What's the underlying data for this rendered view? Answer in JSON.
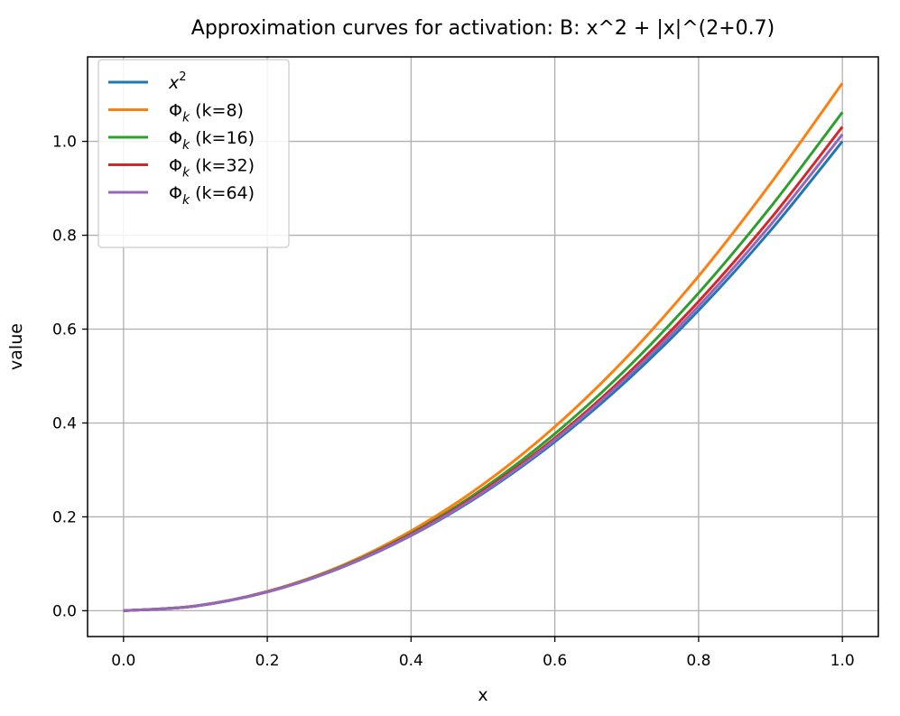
{
  "chart_data": {
    "type": "line",
    "title": "Approximation curves for activation: B: x^2 + |x|^(2+0.7)",
    "xlabel": "x",
    "ylabel": "value",
    "xlim": [
      -0.05,
      1.05
    ],
    "ylim": [
      -0.055,
      1.18
    ],
    "xticks": [
      0.0,
      0.2,
      0.4,
      0.6,
      0.8,
      1.0
    ],
    "xtick_labels": [
      "0.0",
      "0.2",
      "0.4",
      "0.6",
      "0.8",
      "1.0"
    ],
    "yticks": [
      0.0,
      0.2,
      0.4,
      0.6,
      0.8,
      1.0
    ],
    "ytick_labels": [
      "0.0",
      "0.2",
      "0.4",
      "0.6",
      "0.8",
      "1.0"
    ],
    "grid": true,
    "legend_position": "top-left",
    "x": [
      0.0,
      0.1,
      0.2,
      0.3,
      0.4,
      0.5,
      0.6,
      0.7,
      0.8,
      0.9,
      1.0
    ],
    "series": [
      {
        "name": "x²",
        "legend_base": "x",
        "legend_sup": "2",
        "color": "#1f77b4",
        "values": [
          0.0,
          0.01,
          0.04,
          0.09,
          0.16,
          0.25,
          0.36,
          0.49,
          0.64,
          0.81,
          1.0
        ]
      },
      {
        "name": "Φk (k=8)",
        "legend_base": "Φ",
        "legend_sub": "k",
        "legend_rest": " (k=8)",
        "color": "#ff7f0e",
        "values": [
          0.0,
          0.0101,
          0.0412,
          0.0938,
          0.17,
          0.269,
          0.392,
          0.54,
          0.713,
          0.91,
          1.124
        ]
      },
      {
        "name": "Φk (k=16)",
        "legend_base": "Φ",
        "legend_sub": "k",
        "legend_rest": " (k=16)",
        "color": "#2ca02c",
        "values": [
          0.0,
          0.0101,
          0.0406,
          0.092,
          0.165,
          0.26,
          0.377,
          0.516,
          0.677,
          0.86,
          1.062
        ]
      },
      {
        "name": "Φk (k=32)",
        "legend_base": "Φ",
        "legend_sub": "k",
        "legend_rest": " (k=32)",
        "color": "#d62728",
        "values": [
          0.0,
          0.01,
          0.0403,
          0.091,
          0.163,
          0.255,
          0.368,
          0.503,
          0.659,
          0.835,
          1.031
        ]
      },
      {
        "name": "Φk (k=64)",
        "legend_base": "Φ",
        "legend_sub": "k",
        "legend_rest": " (k=64)",
        "color": "#9467bd",
        "values": [
          0.0,
          0.01,
          0.0401,
          0.0905,
          0.161,
          0.252,
          0.364,
          0.497,
          0.649,
          0.822,
          1.015
        ]
      }
    ]
  }
}
